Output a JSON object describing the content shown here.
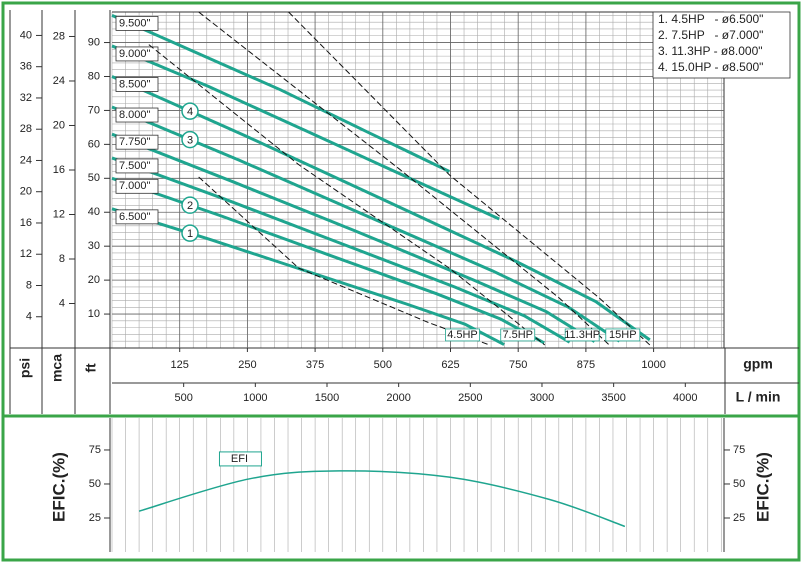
{
  "chart_data": [
    {
      "type": "line",
      "x_axes": [
        {
          "label": "gpm",
          "xlim": [
            0,
            1130
          ],
          "xticks": [
            125,
            250,
            375,
            500,
            625,
            750,
            875,
            1000
          ]
        },
        {
          "label": "L / min",
          "xlim": [
            0,
            4270
          ],
          "xticks": [
            500,
            1000,
            1500,
            2000,
            2500,
            3000,
            3500,
            4000
          ]
        }
      ],
      "y_axes": [
        {
          "label": "psi",
          "ylim": [
            0,
            43
          ],
          "yticks": [
            4,
            8,
            12,
            16,
            20,
            24,
            28,
            32,
            36,
            40
          ]
        },
        {
          "label": "mca",
          "ylim": [
            0,
            30.2
          ],
          "yticks": [
            4,
            8,
            12,
            16,
            20,
            24,
            28
          ]
        },
        {
          "label": "ft",
          "ylim": [
            0,
            99
          ],
          "yticks": [
            10,
            20,
            30,
            40,
            50,
            60,
            70,
            80,
            90
          ],
          "primary": true
        }
      ],
      "grid": true,
      "x_minor_step": 25,
      "y_minor_step": 2,
      "series": [
        {
          "name": "6.500\"",
          "color": "#1fa58f",
          "marker": "1",
          "x": [
            0,
            181,
            362,
            543,
            652,
            724
          ],
          "values": [
            41,
            32,
            22.5,
            13,
            7,
            1
          ]
        },
        {
          "name": "7.000\"",
          "color": "#1fa58f",
          "marker": "2",
          "x": [
            0,
            200,
            399,
            599,
            718,
            798
          ],
          "values": [
            50,
            39,
            27.5,
            16,
            8.5,
            1.5
          ]
        },
        {
          "name": "7.500\"",
          "color": "#1fa58f",
          "x": [
            0,
            211,
            423,
            634,
            761,
            845
          ],
          "values": [
            56,
            43.7,
            30.8,
            17.9,
            9.5,
            1.7
          ]
        },
        {
          "name": "7.750\"",
          "color": "#1fa58f",
          "x": [
            0,
            223,
            446,
            668,
            802,
            891
          ],
          "values": [
            63,
            49,
            34.7,
            20,
            10.7,
            1.9
          ]
        },
        {
          "name": "8.000\"",
          "color": "#1fa58f",
          "marker": "3",
          "x": [
            0,
            234,
            469,
            703,
            843,
            937
          ],
          "values": [
            71,
            55.4,
            39,
            22.7,
            12,
            2
          ]
        },
        {
          "name": "8.500\"",
          "color": "#1fa58f",
          "marker": "4",
          "x": [
            0,
            248,
            497,
            745,
            894,
            993
          ],
          "values": [
            80,
            62.4,
            44,
            25.6,
            13.6,
            2.4
          ]
        },
        {
          "name": "9.000\"",
          "color": "#1fa58f",
          "x": [
            0,
            179,
            358,
            536,
            715
          ],
          "values": [
            89,
            77,
            64,
            51,
            38
          ]
        },
        {
          "name": "9.500\"",
          "color": "#1fa58f",
          "x": [
            0,
            156,
            312,
            467,
            623
          ],
          "values": [
            98,
            87,
            76,
            64,
            52
          ]
        }
      ],
      "motor_lines": [
        {
          "name": "4.5HP",
          "color": "#111111",
          "x": [
            160,
            345,
            586,
            697
          ],
          "values": [
            50.4,
            23.5,
            7.4,
            0.9
          ]
        },
        {
          "name": "7.5HP",
          "color": "#111111",
          "x": [
            68,
            345,
            623,
            799
          ],
          "values": [
            89.4,
            54,
            23.5,
            0.9
          ]
        },
        {
          "name": "11.3HP",
          "color": "#111111",
          "x": [
            160,
            530,
            826,
            918
          ],
          "values": [
            99,
            52.8,
            14.7,
            0.9
          ]
        },
        {
          "name": "15HP",
          "color": "#111111",
          "x": [
            326,
            623,
            900,
            993
          ],
          "values": [
            99,
            51,
            14.7,
            0.9
          ]
        }
      ],
      "legend": [
        "1. 4.5HP   - ø6.500\"",
        "2. 7.5HP   - ø7.000\"",
        "3. 11.3HP - ø8.000\"",
        "4. 15.0HP - ø8.500\""
      ],
      "legend_position": "upper right"
    },
    {
      "type": "line",
      "y_label": "EFIC.(%)",
      "xlim": [
        0,
        1130
      ],
      "ylim": [
        0,
        98.5
      ],
      "yticks": [
        25,
        50,
        75
      ],
      "series": [
        {
          "name": "EFI",
          "color": "#1fa58f",
          "x": [
            50,
            253,
            420,
            623,
            808,
            947
          ],
          "values": [
            30,
            53.7,
            59.6,
            55,
            38.6,
            18.8
          ]
        }
      ]
    }
  ]
}
